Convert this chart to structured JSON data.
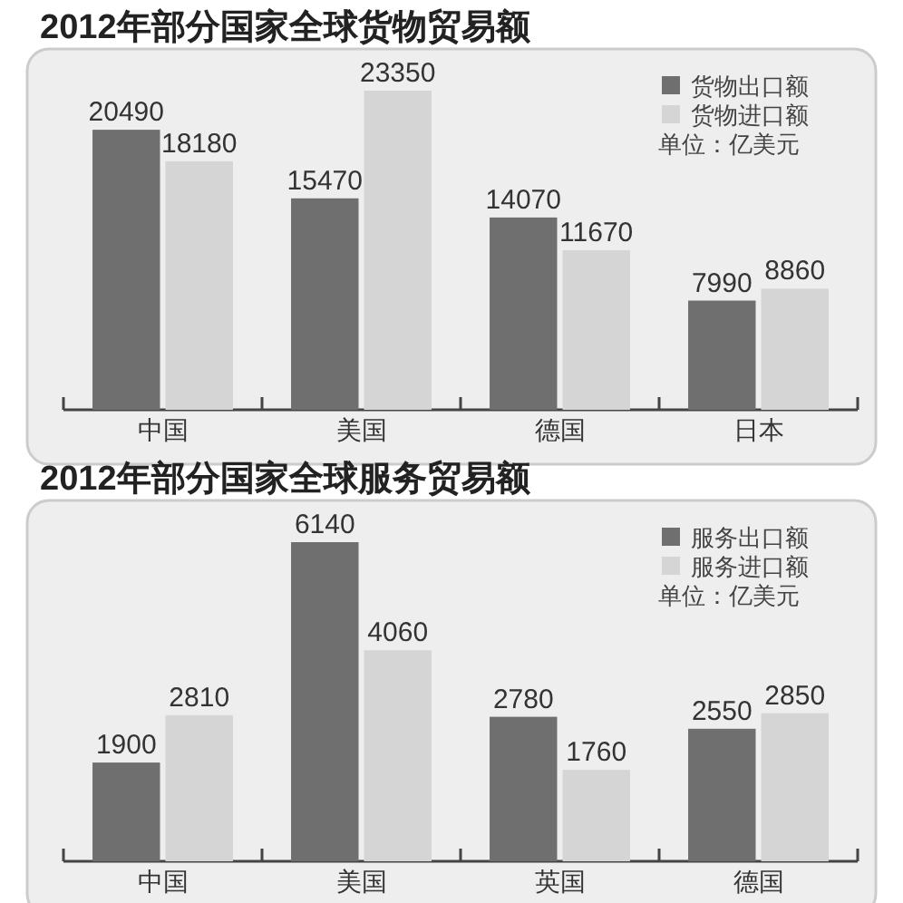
{
  "chart_data": [
    {
      "type": "bar",
      "title": "2012年部分国家全球货物贸易额",
      "categories": [
        "中国",
        "美国",
        "德国",
        "日本"
      ],
      "series": [
        {
          "name": "货物出口额",
          "color": "#6f6f6f",
          "values": [
            20490,
            15470,
            14070,
            7990
          ]
        },
        {
          "name": "货物进口额",
          "color": "#d5d5d5",
          "values": [
            18180,
            23350,
            11670,
            8860
          ]
        }
      ],
      "data_labels": true,
      "legend": "top right",
      "annotations": [
        "单位：亿美元"
      ]
    },
    {
      "type": "bar",
      "title": "2012年部分国家全球服务贸易额",
      "categories": [
        "中国",
        "美国",
        "英国",
        "德国"
      ],
      "series": [
        {
          "name": "服务出口额",
          "color": "#6f6f6f",
          "values": [
            1900,
            6140,
            2780,
            2550
          ]
        },
        {
          "name": "服务进口额",
          "color": "#d5d5d5",
          "values": [
            2810,
            4060,
            1760,
            2850
          ]
        }
      ],
      "data_labels": true,
      "legend": "top right",
      "annotations": [
        "单位：亿美元"
      ]
    }
  ]
}
